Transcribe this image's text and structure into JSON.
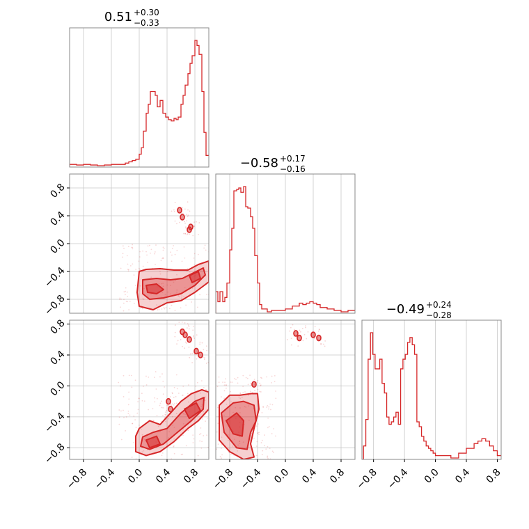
{
  "chart_data": {
    "type": "corner",
    "accent_color": "#d62728",
    "grid": true,
    "parameters": [
      {
        "titles": {
          "median": "0.51",
          "plus": "+0.30",
          "minus": "−0.33"
        },
        "range": [
          -1.0,
          1.0
        ]
      },
      {
        "titles": {
          "median": "−0.58",
          "plus": "+0.17",
          "minus": "−0.16"
        },
        "range": [
          -1.0,
          1.0
        ]
      },
      {
        "titles": {
          "median": "−0.49",
          "plus": "+0.24",
          "minus": "−0.28"
        },
        "range": [
          -0.95,
          0.85
        ]
      }
    ],
    "ticks": {
      "v0": [
        "−0.8",
        "−0.4",
        "0.0",
        "0.4",
        "0.8"
      ],
      "v0_values": [
        -0.8,
        -0.4,
        0.0,
        0.4,
        0.8
      ]
    },
    "histograms": [
      {
        "param": 0,
        "bins": [
          -1.0,
          -0.9,
          -0.8,
          -0.7,
          -0.6,
          -0.5,
          -0.4,
          -0.3,
          -0.2,
          -0.15,
          -0.1,
          -0.05,
          0.0,
          0.03,
          0.06,
          0.1,
          0.13,
          0.16,
          0.2,
          0.23,
          0.26,
          0.3,
          0.34,
          0.38,
          0.42,
          0.46,
          0.5,
          0.53,
          0.56,
          0.6,
          0.63,
          0.66,
          0.7,
          0.73,
          0.76,
          0.8,
          0.83,
          0.86,
          0.9,
          0.93,
          0.96,
          1.0
        ],
        "values": [
          0.01,
          0.005,
          0.01,
          0.005,
          0.0,
          0.005,
          0.01,
          0.01,
          0.02,
          0.03,
          0.04,
          0.05,
          0.09,
          0.14,
          0.27,
          0.41,
          0.48,
          0.58,
          0.58,
          0.55,
          0.46,
          0.51,
          0.41,
          0.38,
          0.36,
          0.35,
          0.37,
          0.36,
          0.38,
          0.48,
          0.55,
          0.63,
          0.72,
          0.8,
          0.86,
          0.98,
          0.94,
          0.87,
          0.58,
          0.26,
          0.08
        ]
      },
      {
        "param": 1,
        "bins": [
          -1.0,
          -0.97,
          -0.94,
          -0.9,
          -0.87,
          -0.84,
          -0.8,
          -0.77,
          -0.74,
          -0.7,
          -0.67,
          -0.64,
          -0.6,
          -0.57,
          -0.54,
          -0.5,
          -0.47,
          -0.44,
          -0.4,
          -0.37,
          -0.34,
          -0.3,
          -0.26,
          -0.2,
          -0.1,
          0.0,
          0.1,
          0.2,
          0.25,
          0.3,
          0.35,
          0.4,
          0.45,
          0.5,
          0.6,
          0.7,
          0.8,
          0.9,
          1.0
        ],
        "values": [
          0.14,
          0.07,
          0.14,
          0.07,
          0.1,
          0.2,
          0.43,
          0.58,
          0.84,
          0.85,
          0.86,
          0.83,
          0.87,
          0.73,
          0.72,
          0.66,
          0.58,
          0.39,
          0.2,
          0.05,
          0.02,
          0.02,
          0.0,
          0.01,
          0.01,
          0.02,
          0.04,
          0.06,
          0.05,
          0.06,
          0.07,
          0.06,
          0.05,
          0.03,
          0.02,
          0.01,
          0.0,
          0.01
        ]
      },
      {
        "param": 2,
        "bins": [
          -0.93,
          -0.9,
          -0.87,
          -0.84,
          -0.81,
          -0.78,
          -0.75,
          -0.72,
          -0.69,
          -0.66,
          -0.63,
          -0.6,
          -0.57,
          -0.54,
          -0.51,
          -0.48,
          -0.45,
          -0.42,
          -0.39,
          -0.36,
          -0.33,
          -0.3,
          -0.27,
          -0.24,
          -0.21,
          -0.18,
          -0.15,
          -0.12,
          -0.09,
          -0.06,
          -0.03,
          0.0,
          0.03,
          0.1,
          0.2,
          0.3,
          0.4,
          0.5,
          0.55,
          0.6,
          0.65,
          0.7,
          0.75,
          0.8,
          0.85
        ],
        "values": [
          0.05,
          0.16,
          0.41,
          0.52,
          0.43,
          0.37,
          0.37,
          0.41,
          0.31,
          0.27,
          0.17,
          0.14,
          0.15,
          0.17,
          0.19,
          0.14,
          0.37,
          0.41,
          0.43,
          0.48,
          0.5,
          0.47,
          0.43,
          0.15,
          0.13,
          0.09,
          0.07,
          0.05,
          0.04,
          0.03,
          0.02,
          0.01,
          0.01,
          0.01,
          0.0,
          0.02,
          0.04,
          0.06,
          0.07,
          0.08,
          0.07,
          0.05,
          0.03,
          0.01
        ]
      }
    ],
    "scatter_panels": [
      {
        "row": 1,
        "col": 0,
        "density_regions": [
          {
            "level": "outer",
            "points": [
              [
                0.0,
                -0.4
              ],
              [
                0.1,
                -0.37
              ],
              [
                0.3,
                -0.36
              ],
              [
                0.5,
                -0.38
              ],
              [
                0.7,
                -0.38
              ],
              [
                0.85,
                -0.3
              ],
              [
                1.0,
                -0.25
              ],
              [
                1.0,
                -0.55
              ],
              [
                0.8,
                -0.7
              ],
              [
                0.6,
                -0.82
              ],
              [
                0.4,
                -0.85
              ],
              [
                0.2,
                -0.95
              ],
              [
                0.0,
                -0.9
              ],
              [
                -0.03,
                -0.7
              ]
            ]
          },
          {
            "level": "inner",
            "points": [
              [
                0.05,
                -0.52
              ],
              [
                0.25,
                -0.5
              ],
              [
                0.45,
                -0.52
              ],
              [
                0.62,
                -0.5
              ],
              [
                0.78,
                -0.42
              ],
              [
                0.92,
                -0.35
              ],
              [
                0.95,
                -0.45
              ],
              [
                0.8,
                -0.6
              ],
              [
                0.6,
                -0.72
              ],
              [
                0.35,
                -0.78
              ],
              [
                0.15,
                -0.8
              ],
              [
                0.05,
                -0.72
              ]
            ]
          },
          {
            "level": "core",
            "points": [
              [
                0.1,
                -0.6
              ],
              [
                0.25,
                -0.58
              ],
              [
                0.35,
                -0.66
              ],
              [
                0.25,
                -0.72
              ],
              [
                0.12,
                -0.7
              ]
            ]
          },
          {
            "level": "core",
            "points": [
              [
                0.72,
                -0.46
              ],
              [
                0.85,
                -0.4
              ],
              [
                0.88,
                -0.5
              ],
              [
                0.76,
                -0.56
              ]
            ]
          }
        ],
        "islands": [
          [
            0.58,
            0.48
          ],
          [
            0.62,
            0.38
          ],
          [
            0.72,
            0.2
          ],
          [
            0.74,
            0.24
          ]
        ]
      },
      {
        "row": 2,
        "col": 0,
        "density_regions": [
          {
            "level": "outer",
            "points": [
              [
                0.0,
                -0.55
              ],
              [
                0.15,
                -0.45
              ],
              [
                0.3,
                -0.5
              ],
              [
                0.45,
                -0.35
              ],
              [
                0.6,
                -0.2
              ],
              [
                0.75,
                -0.1
              ],
              [
                0.9,
                -0.05
              ],
              [
                1.0,
                -0.08
              ],
              [
                1.0,
                -0.3
              ],
              [
                0.85,
                -0.45
              ],
              [
                0.7,
                -0.55
              ],
              [
                0.5,
                -0.72
              ],
              [
                0.3,
                -0.85
              ],
              [
                0.1,
                -0.9
              ],
              [
                -0.05,
                -0.85
              ],
              [
                -0.05,
                -0.65
              ]
            ]
          },
          {
            "level": "inner",
            "points": [
              [
                0.05,
                -0.66
              ],
              [
                0.2,
                -0.6
              ],
              [
                0.4,
                -0.55
              ],
              [
                0.6,
                -0.35
              ],
              [
                0.8,
                -0.2
              ],
              [
                0.93,
                -0.15
              ],
              [
                0.92,
                -0.3
              ],
              [
                0.75,
                -0.45
              ],
              [
                0.55,
                -0.6
              ],
              [
                0.35,
                -0.75
              ],
              [
                0.15,
                -0.82
              ],
              [
                0.02,
                -0.78
              ]
            ]
          },
          {
            "level": "core",
            "points": [
              [
                0.1,
                -0.7
              ],
              [
                0.25,
                -0.65
              ],
              [
                0.3,
                -0.75
              ],
              [
                0.15,
                -0.8
              ]
            ]
          },
          {
            "level": "core",
            "points": [
              [
                0.65,
                -0.3
              ],
              [
                0.82,
                -0.22
              ],
              [
                0.88,
                -0.32
              ],
              [
                0.72,
                -0.42
              ]
            ]
          }
        ],
        "islands": [
          [
            0.62,
            0.7
          ],
          [
            0.66,
            0.66
          ],
          [
            0.72,
            0.6
          ],
          [
            0.82,
            0.45
          ],
          [
            0.88,
            0.4
          ],
          [
            0.42,
            -0.2
          ],
          [
            0.45,
            -0.3
          ]
        ]
      },
      {
        "row": 2,
        "col": 1,
        "density_regions": [
          {
            "level": "outer",
            "points": [
              [
                -0.95,
                -0.25
              ],
              [
                -0.8,
                -0.12
              ],
              [
                -0.65,
                -0.12
              ],
              [
                -0.5,
                -0.1
              ],
              [
                -0.4,
                -0.1
              ],
              [
                -0.38,
                -0.3
              ],
              [
                -0.45,
                -0.55
              ],
              [
                -0.5,
                -0.75
              ],
              [
                -0.45,
                -0.92
              ],
              [
                -0.6,
                -0.95
              ],
              [
                -0.8,
                -0.85
              ],
              [
                -0.95,
                -0.7
              ]
            ]
          },
          {
            "level": "inner",
            "points": [
              [
                -0.92,
                -0.35
              ],
              [
                -0.75,
                -0.22
              ],
              [
                -0.6,
                -0.2
              ],
              [
                -0.45,
                -0.25
              ],
              [
                -0.42,
                -0.45
              ],
              [
                -0.5,
                -0.6
              ],
              [
                -0.55,
                -0.82
              ],
              [
                -0.7,
                -0.8
              ],
              [
                -0.88,
                -0.6
              ]
            ]
          },
          {
            "level": "core",
            "points": [
              [
                -0.85,
                -0.45
              ],
              [
                -0.7,
                -0.35
              ],
              [
                -0.6,
                -0.45
              ],
              [
                -0.62,
                -0.65
              ],
              [
                -0.75,
                -0.62
              ]
            ]
          }
        ],
        "islands": [
          [
            0.15,
            0.68
          ],
          [
            0.2,
            0.62
          ],
          [
            0.4,
            0.66
          ],
          [
            0.48,
            0.62
          ],
          [
            -0.45,
            0.02
          ]
        ]
      }
    ]
  }
}
